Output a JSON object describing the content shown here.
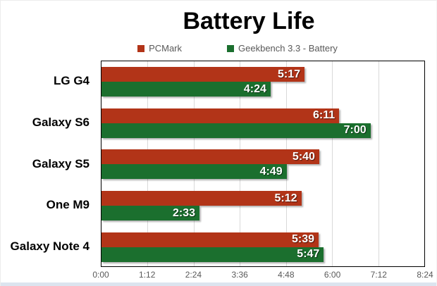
{
  "title": "Battery Life",
  "legend": [
    {
      "label": "PCMark",
      "color": "#b23418",
      "swatch": "red-square"
    },
    {
      "label": "Geekbench 3.3 - Battery",
      "color": "#1b6f2e",
      "swatch": "green-square"
    }
  ],
  "colors": {
    "pcmark_red": "#b23418",
    "geekbench_green": "#1b6f2e",
    "gridline": "#d9d9d9",
    "plot_border": "#000000",
    "axis_text": "#595959",
    "title_text": "#000000",
    "value_text": "#ffffff",
    "bottom_strip": "#dce4ef"
  },
  "chart_data": {
    "type": "bar",
    "orientation": "horizontal",
    "title": "Battery Life",
    "categories": [
      "LG G4",
      "Galaxy S6",
      "Galaxy S5",
      "One M9",
      "Galaxy Note 4"
    ],
    "series": [
      {
        "name": "PCMark",
        "color": "#b23418",
        "labels": [
          "5:17",
          "6:11",
          "5:40",
          "5:12",
          "5:39"
        ],
        "values_minutes": [
          317,
          371,
          340,
          312,
          339
        ]
      },
      {
        "name": "Geekbench 3.3 - Battery",
        "color": "#1b6f2e",
        "labels": [
          "4:24",
          "7:00",
          "4:49",
          "2:33",
          "5:47"
        ],
        "values_minutes": [
          264,
          420,
          289,
          153,
          347
        ]
      }
    ],
    "x_axis": {
      "ticks": [
        "0:00",
        "1:12",
        "2:24",
        "3:36",
        "4:48",
        "6:00",
        "7:12",
        "8:24"
      ],
      "tick_minutes": [
        0,
        72,
        144,
        216,
        288,
        360,
        432,
        504
      ],
      "max_minutes": 504,
      "gridlines": true
    },
    "ylabel": "",
    "xlabel": "",
    "legend_position": "top-center",
    "value_labels": "inside-end"
  }
}
